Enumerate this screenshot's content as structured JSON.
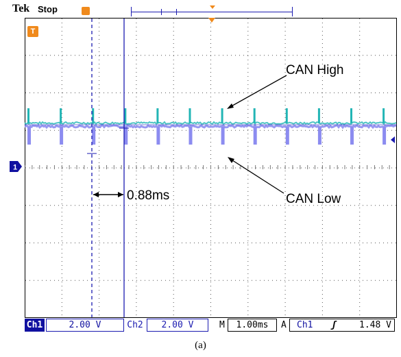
{
  "header": {
    "brand": "Tek",
    "run_state": "Stop"
  },
  "markers": {
    "trigger_marker": "T",
    "channel_marker": "1"
  },
  "annotations": {
    "can_high": "CAN High",
    "can_low": "CAN Low",
    "cursor_delta": "0.88ms"
  },
  "status": {
    "ch1_label": "Ch1",
    "ch1_scale": "2.00 V",
    "ch2_label": "Ch2",
    "ch2_scale": "2.00 V",
    "timebase_label": "M",
    "timebase": "1.00ms",
    "acq_label": "A",
    "trigger_source": "Ch1",
    "trigger_slope": "ʃ",
    "trigger_level": "1.48 V"
  },
  "caption": "(a)",
  "colors": {
    "can_high_trace": "#22b5b5",
    "can_low_trace": "#8c8cf0",
    "cursor": "#1a1ab0",
    "trigger_orange": "#f08a1c",
    "ch1_badge": "#1010a0"
  }
}
